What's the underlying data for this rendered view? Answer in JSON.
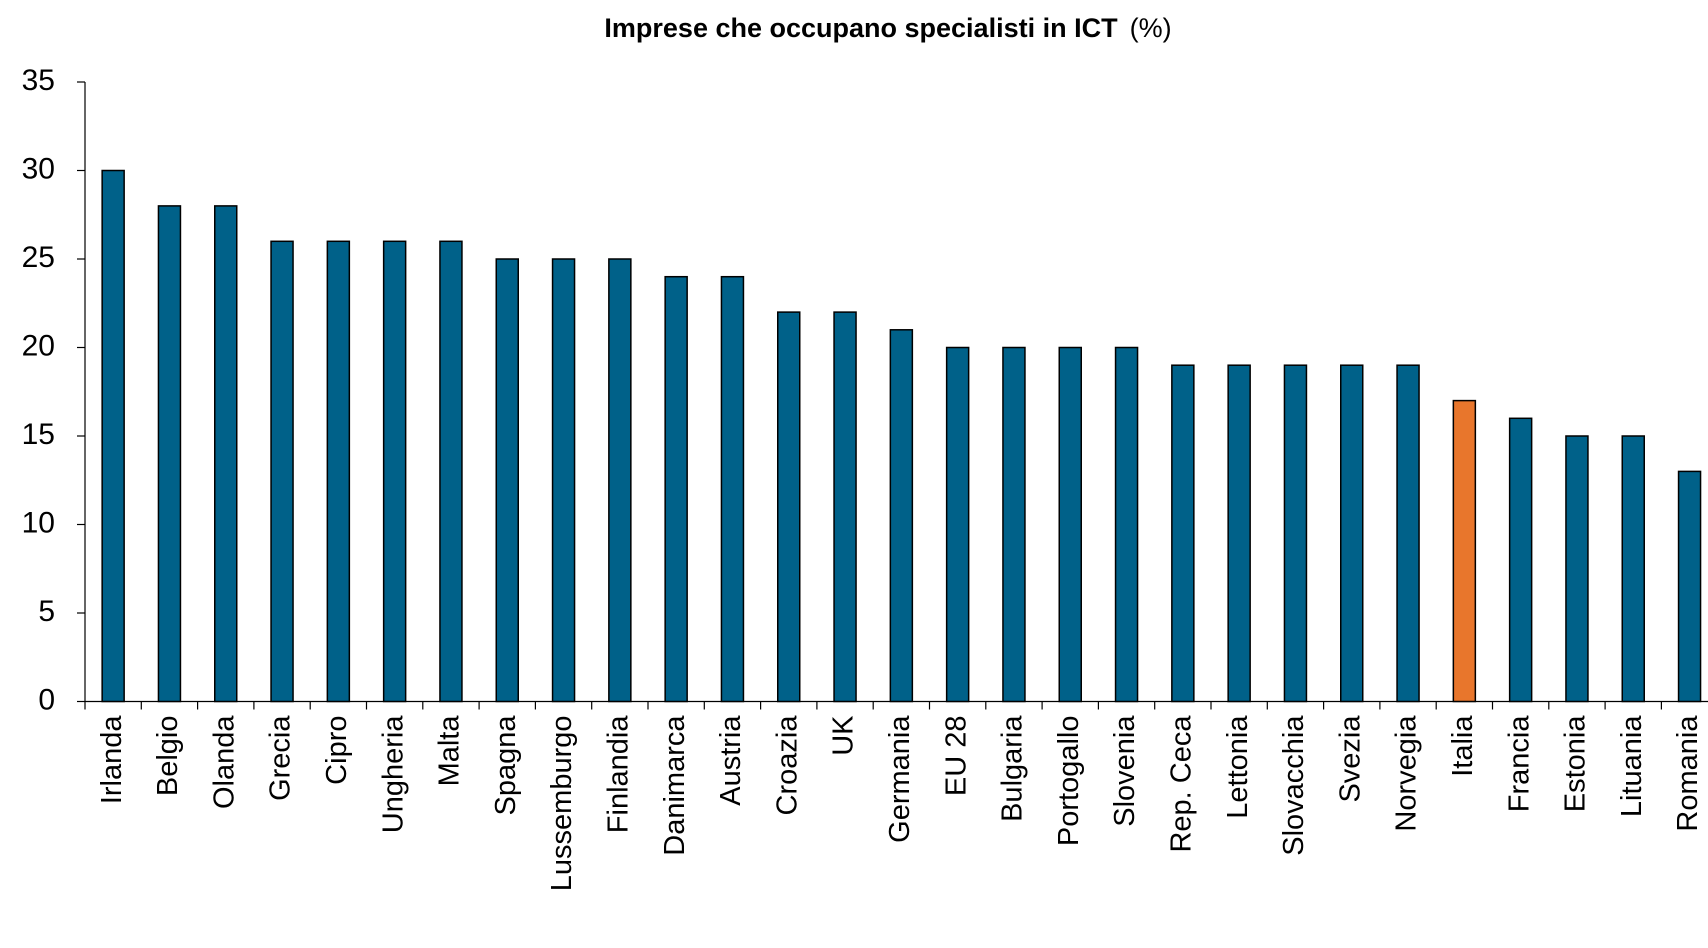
{
  "chart_data": {
    "type": "bar",
    "title": "Imprese che occupano specialisti in ICT",
    "title_unit": "(%)",
    "categories": [
      "Irlanda",
      "Belgio",
      "Olanda",
      "Grecia",
      "Cipro",
      "Ungheria",
      "Malta",
      "Spagna",
      "Lussemburgo",
      "Finlandia",
      "Danimarca",
      "Austria",
      "Croazia",
      "UK",
      "Germania",
      "EU 28",
      "Bulgaria",
      "Portogallo",
      "Slovenia",
      "Rep. Ceca",
      "Lettonia",
      "Slovacchia",
      "Svezia",
      "Norvegia",
      "Italia",
      "Francia",
      "Estonia",
      "Lituania",
      "Romania"
    ],
    "values": [
      30,
      28,
      28,
      26,
      26,
      26,
      26,
      25,
      25,
      25,
      24,
      24,
      22,
      22,
      21,
      20,
      20,
      20,
      20,
      19,
      19,
      19,
      19,
      19,
      17,
      16,
      15,
      15,
      13
    ],
    "colors": [
      "#006189",
      "#006189",
      "#006189",
      "#006189",
      "#006189",
      "#006189",
      "#006189",
      "#006189",
      "#006189",
      "#006189",
      "#006189",
      "#006189",
      "#006189",
      "#006189",
      "#006189",
      "#006189",
      "#006189",
      "#006189",
      "#006189",
      "#006189",
      "#006189",
      "#006189",
      "#006189",
      "#006189",
      "#e8762c",
      "#006189",
      "#006189",
      "#006189",
      "#006189"
    ],
    "ylim": [
      0,
      35
    ],
    "yticks": [
      0,
      5,
      10,
      15,
      20,
      25,
      30,
      35
    ],
    "grid": false
  }
}
